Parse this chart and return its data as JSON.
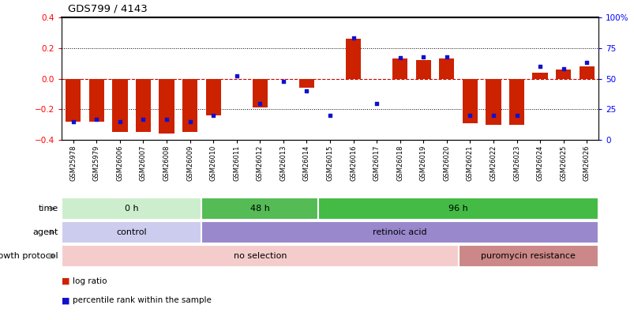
{
  "title": "GDS799 / 4143",
  "samples": [
    "GSM25978",
    "GSM25979",
    "GSM26006",
    "GSM26007",
    "GSM26008",
    "GSM26009",
    "GSM26010",
    "GSM26011",
    "GSM26012",
    "GSM26013",
    "GSM26014",
    "GSM26015",
    "GSM26016",
    "GSM26017",
    "GSM26018",
    "GSM26019",
    "GSM26020",
    "GSM26021",
    "GSM26022",
    "GSM26023",
    "GSM26024",
    "GSM26025",
    "GSM26026"
  ],
  "log_ratio": [
    -0.28,
    -0.28,
    -0.35,
    -0.35,
    -0.36,
    -0.35,
    -0.24,
    -0.005,
    -0.19,
    -0.005,
    -0.06,
    -0.005,
    0.26,
    0.0,
    0.13,
    0.12,
    0.13,
    -0.29,
    -0.3,
    -0.3,
    0.04,
    0.06,
    0.08
  ],
  "percentile": [
    15,
    17,
    15,
    17,
    17,
    15,
    20,
    52,
    30,
    48,
    40,
    20,
    83,
    30,
    67,
    68,
    68,
    20,
    20,
    20,
    60,
    58,
    63
  ],
  "ylim": [
    -0.4,
    0.4
  ],
  "right_ylim": [
    0,
    100
  ],
  "bar_color": "#cc2200",
  "dot_color": "#1111cc",
  "zero_line_color": "#cc0000",
  "time_groups": [
    {
      "label": "0 h",
      "start": 0,
      "end": 6,
      "color": "#cceecc"
    },
    {
      "label": "48 h",
      "start": 6,
      "end": 11,
      "color": "#55bb55"
    },
    {
      "label": "96 h",
      "start": 11,
      "end": 23,
      "color": "#44bb44"
    }
  ],
  "agent_groups": [
    {
      "label": "control",
      "start": 0,
      "end": 6,
      "color": "#ccccee"
    },
    {
      "label": "retinoic acid",
      "start": 6,
      "end": 23,
      "color": "#9988cc"
    }
  ],
  "growth_groups": [
    {
      "label": "no selection",
      "start": 0,
      "end": 17,
      "color": "#f5cccc"
    },
    {
      "label": "puromycin resistance",
      "start": 17,
      "end": 23,
      "color": "#cc8888"
    }
  ],
  "row_labels": [
    "time",
    "agent",
    "growth protocol"
  ],
  "legend_bar": "log ratio",
  "legend_dot": "percentile rank within the sample"
}
